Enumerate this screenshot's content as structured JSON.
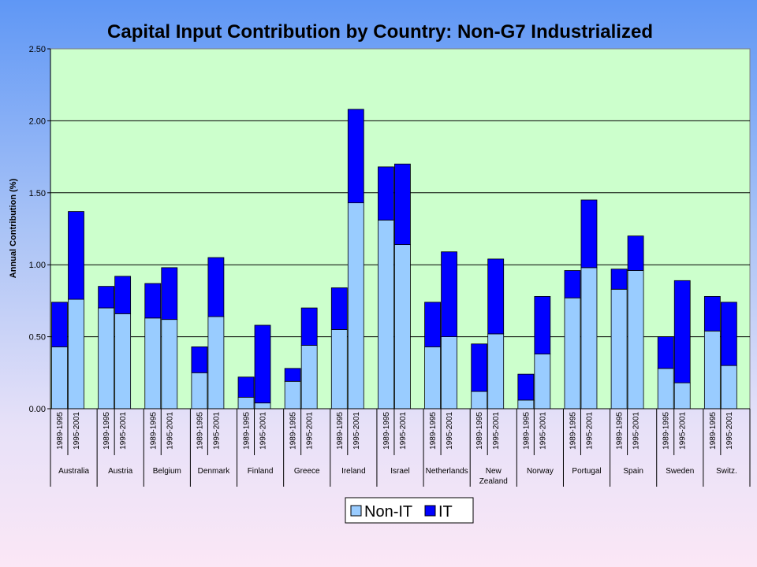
{
  "chart_data": {
    "type": "bar",
    "stacked": true,
    "title": "Capital Input Contribution by Country: Non-G7 Industrialized",
    "ylabel": "Annual Contribution (%)",
    "xlabel": "",
    "ylim": [
      0,
      2.5
    ],
    "yticks": [
      "0.00",
      "0.50",
      "1.00",
      "1.50",
      "2.00",
      "2.50"
    ],
    "grid": true,
    "legend_position": "bottom",
    "periods": [
      "1989-1995",
      "1995-2001"
    ],
    "groups": [
      {
        "country": [
          "Australia"
        ],
        "non_it": [
          0.43,
          0.76
        ],
        "it": [
          0.31,
          0.61
        ]
      },
      {
        "country": [
          "Austria"
        ],
        "non_it": [
          0.7,
          0.66
        ],
        "it": [
          0.15,
          0.26
        ]
      },
      {
        "country": [
          "Belgium"
        ],
        "non_it": [
          0.63,
          0.62
        ],
        "it": [
          0.24,
          0.36
        ]
      },
      {
        "country": [
          "Denmark"
        ],
        "non_it": [
          0.25,
          0.64
        ],
        "it": [
          0.18,
          0.41
        ]
      },
      {
        "country": [
          "Finland"
        ],
        "non_it": [
          0.08,
          0.04
        ],
        "it": [
          0.14,
          0.54
        ]
      },
      {
        "country": [
          "Greece"
        ],
        "non_it": [
          0.19,
          0.44
        ],
        "it": [
          0.09,
          0.26
        ]
      },
      {
        "country": [
          "Ireland"
        ],
        "non_it": [
          0.55,
          1.43
        ],
        "it": [
          0.29,
          0.65
        ]
      },
      {
        "country": [
          "Israel"
        ],
        "non_it": [
          1.31,
          1.14
        ],
        "it": [
          0.37,
          0.56
        ]
      },
      {
        "country": [
          "Netherlands"
        ],
        "non_it": [
          0.43,
          0.5
        ],
        "it": [
          0.31,
          0.59
        ]
      },
      {
        "country": [
          "New",
          "Zealand"
        ],
        "non_it": [
          0.12,
          0.52
        ],
        "it": [
          0.33,
          0.52
        ]
      },
      {
        "country": [
          "Norway"
        ],
        "non_it": [
          0.06,
          0.38
        ],
        "it": [
          0.18,
          0.4
        ]
      },
      {
        "country": [
          "Portugal"
        ],
        "non_it": [
          0.77,
          0.98
        ],
        "it": [
          0.19,
          0.47
        ]
      },
      {
        "country": [
          "Spain"
        ],
        "non_it": [
          0.83,
          0.96
        ],
        "it": [
          0.14,
          0.24
        ]
      },
      {
        "country": [
          "Sweden"
        ],
        "non_it": [
          0.28,
          0.18
        ],
        "it": [
          0.22,
          0.71
        ]
      },
      {
        "country": [
          "Switz."
        ],
        "non_it": [
          0.54,
          0.3
        ],
        "it": [
          0.24,
          0.44
        ]
      }
    ],
    "series": [
      {
        "name": "Non-IT",
        "color": "#99ccff"
      },
      {
        "name": "IT",
        "color": "#0000ff"
      }
    ]
  },
  "colors": {
    "plot_background": "#ccffcc",
    "non_it": "#99ccff",
    "it": "#0000ff"
  }
}
